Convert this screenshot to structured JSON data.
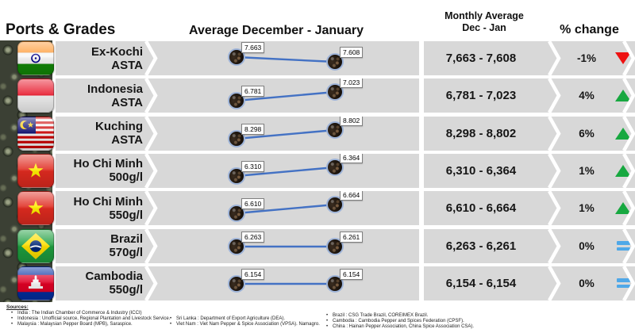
{
  "header": {
    "ports_grades": "Ports & Grades",
    "avg_title": "Average December - January",
    "monthly_avg_line1": "Monthly Average",
    "monthly_avg_line2": "Dec - Jan",
    "pct_change": "% change"
  },
  "rows": [
    {
      "port": "Ex-Kochi",
      "grade": "ASTA",
      "flag": "india",
      "v1_label": "7.663",
      "v2_label": "7.608",
      "range_label": "7,663 - 7,608",
      "pct": "-1%",
      "trend": "down"
    },
    {
      "port": "Indonesia",
      "grade": "ASTA",
      "flag": "indonesia",
      "v1_label": "6.781",
      "v2_label": "7.023",
      "range_label": "6,781 - 7,023",
      "pct": "4%",
      "trend": "up"
    },
    {
      "port": "Kuching",
      "grade": "ASTA",
      "flag": "malaysia",
      "v1_label": "8.298",
      "v2_label": "8.802",
      "range_label": "8,298 - 8,802",
      "pct": "6%",
      "trend": "up"
    },
    {
      "port": "Ho Chi Minh",
      "grade": "500g/l",
      "flag": "vietnam",
      "v1_label": "6.310",
      "v2_label": "6.364",
      "range_label": "6,310 - 6,364",
      "pct": "1%",
      "trend": "up"
    },
    {
      "port": "Ho Chi Minh",
      "grade": "550g/l",
      "flag": "vietnam",
      "v1_label": "6.610",
      "v2_label": "6.664",
      "range_label": "6,610 - 6,664",
      "pct": "1%",
      "trend": "up"
    },
    {
      "port": "Brazil",
      "grade": "570g/l",
      "flag": "brazil",
      "v1_label": "6.263",
      "v2_label": "6.261",
      "range_label": "6,263 - 6,261",
      "pct": "0%",
      "trend": "flat"
    },
    {
      "port": "Cambodia",
      "grade": "550g/l",
      "flag": "cambodia",
      "v1_label": "6.154",
      "v2_label": "6.154",
      "range_label": "6,154 - 6,154",
      "pct": "0%",
      "trend": "flat"
    }
  ],
  "chart_data": {
    "type": "line",
    "x": [
      "Dec",
      "Jan"
    ],
    "title": "Average December - January",
    "series": [
      {
        "name": "Ex-Kochi ASTA",
        "values": [
          7663,
          7608
        ],
        "pct_change": "-1%"
      },
      {
        "name": "Indonesia ASTA",
        "values": [
          6781,
          7023
        ],
        "pct_change": "4%"
      },
      {
        "name": "Kuching ASTA",
        "values": [
          8298,
          8802
        ],
        "pct_change": "6%"
      },
      {
        "name": "Ho Chi Minh 500g/l",
        "values": [
          6310,
          6364
        ],
        "pct_change": "1%"
      },
      {
        "name": "Ho Chi Minh 550g/l",
        "values": [
          6610,
          6664
        ],
        "pct_change": "1%"
      },
      {
        "name": "Brazil 570g/l",
        "values": [
          6263,
          6261
        ],
        "pct_change": "0%"
      },
      {
        "name": "Cambodia 550g/l",
        "values": [
          6154,
          6154
        ],
        "pct_change": "0%"
      }
    ],
    "legend_position": "none",
    "grid": false
  },
  "sources": {
    "title": "Sources:",
    "bullet": "•",
    "col1": [
      "India : The Indian Chamber of Commerce & Industry (ICCI)",
      "Indonesia : Unofficial source, Regional Plantation and Livestock Service.",
      "Malaysia : Malaysian Pepper Board (MPB), Saraspice."
    ],
    "col2": [
      "Sri Lanka : Department of Export Agriculture (DEA).",
      "Viet Nam : Viet Nam Pepper & Spice Association (VPSA). Namagro."
    ],
    "col3": [
      "Brazil : CSG Trade Brazil, COREIMEX Brazil.",
      "Cambodia : Cambodia Pepper and Spices Federation (CPSF).",
      "China : Hainan Pepper Association, China Spice Association CSA)."
    ]
  },
  "colors": {
    "row_band": "#d8d8d8",
    "spark_line": "#4472c4",
    "up_green": "#17a840",
    "down_red": "#ee1111",
    "flat_blue": "#4fa8e8"
  }
}
